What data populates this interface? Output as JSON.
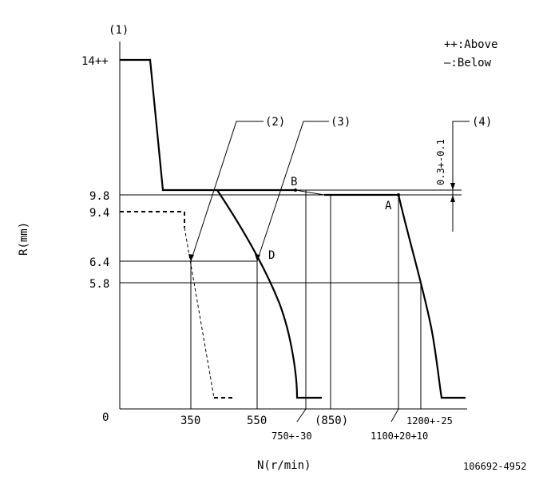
{
  "labels": {
    "note1": "(1)",
    "note2": "(2)",
    "note3": "(3)",
    "note4": "(4)",
    "legend_above": "++:Above",
    "legend_below": "—:Below",
    "y_axis_label": "R(mm)",
    "x_axis_label": "N(r/min)",
    "drawing_number": "106692-4952",
    "origin": "0",
    "y_tick_14": "14++",
    "y_tick_9_8": "9.8",
    "y_tick_9_4": "9.4",
    "y_tick_6_4": "6.4",
    "y_tick_5_8": "5.8",
    "x_tick_350": "350",
    "x_tick_550": "550",
    "x_tick_850": "(850)",
    "x_tick_750": "750+-30",
    "x_tick_1100": "1100+20+10",
    "x_tick_1200": "1200+-25",
    "point_a": "A",
    "point_b": "B",
    "point_d": "D",
    "tolerance": "0.3+-0.1"
  }
}
